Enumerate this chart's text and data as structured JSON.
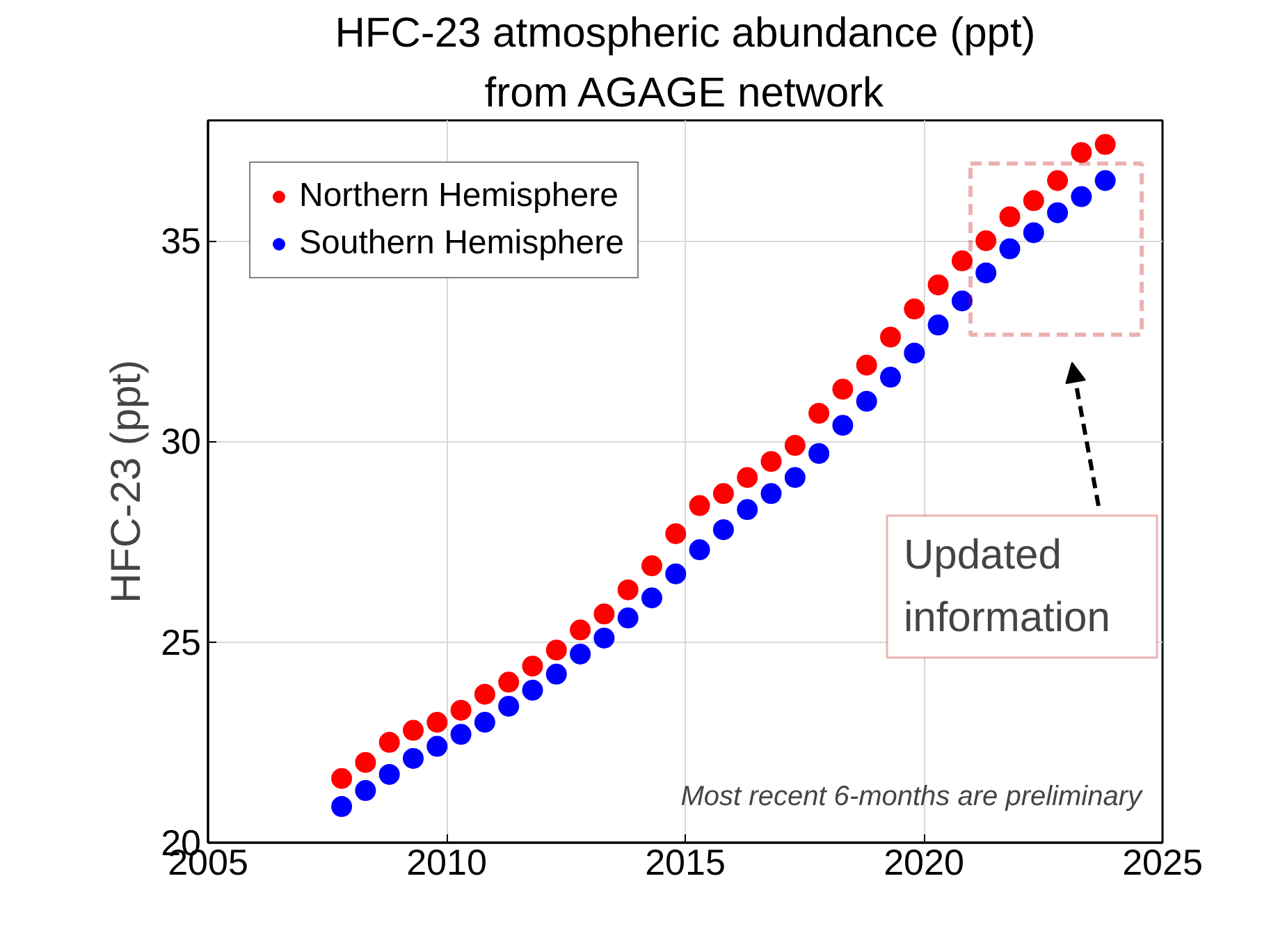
{
  "chart_data": {
    "type": "scatter",
    "title": "HFC-23 atmospheric abundance (ppt)",
    "subtitle": "from AGAGE network",
    "ylabel": "HFC-23 (ppt)",
    "xlim": [
      2005,
      2025
    ],
    "xticks": [
      2005,
      2010,
      2015,
      2020,
      2025
    ],
    "ylim": [
      20,
      38
    ],
    "yticks": [
      20,
      25,
      30,
      35
    ],
    "grid": true,
    "legend": "top left",
    "marker": "circle",
    "annotations": [
      "Most recent 6-months are preliminary",
      "Updated information"
    ],
    "series": [
      {
        "name": "Northern Hemisphere",
        "color": "#ff0000",
        "x": [
          2007.8,
          2008.3,
          2008.8,
          2009.3,
          2009.8,
          2010.3,
          2010.8,
          2011.3,
          2011.8,
          2012.3,
          2012.8,
          2013.3,
          2013.8,
          2014.3,
          2014.8,
          2015.3,
          2015.8,
          2016.3,
          2016.8,
          2017.3,
          2017.8,
          2018.3,
          2018.8,
          2019.3,
          2019.8,
          2020.3,
          2020.8,
          2021.3,
          2021.8,
          2022.3,
          2022.8,
          2023.3,
          2023.8
        ],
        "values": [
          21.6,
          22.0,
          22.5,
          22.8,
          23.0,
          23.3,
          23.7,
          24.0,
          24.4,
          24.8,
          25.3,
          25.7,
          26.3,
          26.9,
          27.7,
          28.4,
          28.7,
          29.1,
          29.5,
          29.9,
          30.7,
          31.3,
          31.9,
          32.6,
          33.3,
          33.9,
          34.5,
          35.0,
          35.6,
          36.0,
          36.5,
          37.2,
          37.4
        ]
      },
      {
        "name": "Southern Hemisphere",
        "color": "#0000ff",
        "x": [
          2007.8,
          2008.3,
          2008.8,
          2009.3,
          2009.8,
          2010.3,
          2010.8,
          2011.3,
          2011.8,
          2012.3,
          2012.8,
          2013.3,
          2013.8,
          2014.3,
          2014.8,
          2015.3,
          2015.8,
          2016.3,
          2016.8,
          2017.3,
          2017.8,
          2018.3,
          2018.8,
          2019.3,
          2019.8,
          2020.3,
          2020.8,
          2021.3,
          2021.8,
          2022.3,
          2022.8,
          2023.3,
          2023.8
        ],
        "values": [
          20.9,
          21.3,
          21.7,
          22.1,
          22.4,
          22.7,
          23.0,
          23.4,
          23.8,
          24.2,
          24.7,
          25.1,
          25.6,
          26.1,
          26.7,
          27.3,
          27.8,
          28.3,
          28.7,
          29.1,
          29.7,
          30.4,
          31.0,
          31.6,
          32.2,
          32.9,
          33.5,
          34.2,
          34.8,
          35.2,
          35.7,
          36.1,
          36.5
        ]
      }
    ]
  }
}
